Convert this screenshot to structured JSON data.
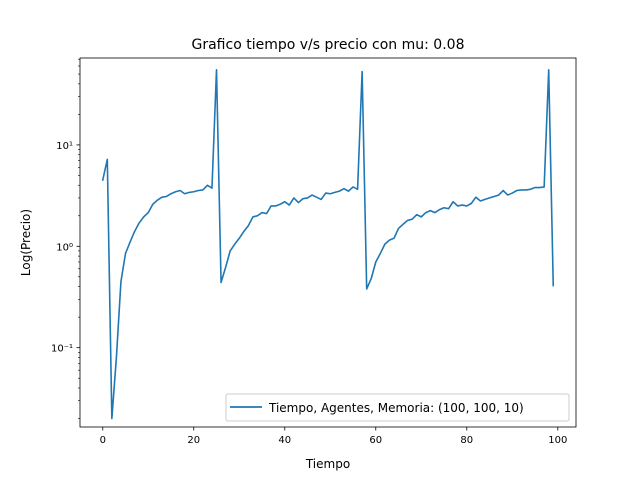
{
  "chart_data": {
    "type": "line",
    "title": "Grafico tiempo v/s precio con mu: 0.08",
    "xlabel": "Tiempo",
    "ylabel": "Log(Precio)",
    "yscale": "log",
    "xlim": [
      -5,
      104
    ],
    "ylim": [
      0.0165,
      72
    ],
    "xticks": [
      0,
      20,
      40,
      60,
      80,
      100
    ],
    "xtick_labels": [
      "0",
      "20",
      "40",
      "60",
      "80",
      "100"
    ],
    "yticks": [
      0.1,
      1,
      10
    ],
    "ytick_labels": [
      "10⁻¹",
      "10⁰",
      "10¹"
    ],
    "grid": false,
    "legend_position": "lower right",
    "series": [
      {
        "name": "Tiempo, Agentes, Memoria: (100, 100, 10)",
        "color": "#1f77b4",
        "x": [
          0,
          1,
          2,
          3,
          4,
          5,
          6,
          7,
          8,
          9,
          10,
          11,
          12,
          13,
          14,
          15,
          16,
          17,
          18,
          19,
          20,
          21,
          22,
          23,
          24,
          25,
          26,
          27,
          28,
          29,
          30,
          31,
          32,
          33,
          34,
          35,
          36,
          37,
          38,
          39,
          40,
          41,
          42,
          43,
          44,
          45,
          46,
          47,
          48,
          49,
          50,
          51,
          52,
          53,
          54,
          55,
          56,
          57,
          58,
          59,
          60,
          61,
          62,
          63,
          64,
          65,
          66,
          67,
          68,
          69,
          70,
          71,
          72,
          73,
          74,
          75,
          76,
          77,
          78,
          79,
          80,
          81,
          82,
          83,
          84,
          85,
          86,
          87,
          88,
          89,
          90,
          91,
          92,
          93,
          94,
          95,
          96,
          97,
          98,
          99
        ],
        "y": [
          4.5,
          7.2,
          0.02,
          0.08,
          0.45,
          0.85,
          1.1,
          1.4,
          1.7,
          1.95,
          2.15,
          2.6,
          2.85,
          3.05,
          3.1,
          3.3,
          3.45,
          3.55,
          3.3,
          3.4,
          3.45,
          3.55,
          3.6,
          4.0,
          3.75,
          55,
          0.44,
          0.62,
          0.9,
          1.05,
          1.2,
          1.4,
          1.6,
          1.95,
          2.0,
          2.15,
          2.1,
          2.5,
          2.5,
          2.6,
          2.75,
          2.55,
          3.0,
          2.7,
          2.95,
          3.0,
          3.2,
          3.05,
          2.9,
          3.35,
          3.3,
          3.4,
          3.5,
          3.7,
          3.5,
          3.85,
          3.65,
          53,
          0.38,
          0.48,
          0.7,
          0.85,
          1.05,
          1.15,
          1.2,
          1.5,
          1.65,
          1.8,
          1.85,
          2.05,
          1.95,
          2.15,
          2.25,
          2.15,
          2.3,
          2.4,
          2.35,
          2.75,
          2.5,
          2.55,
          2.5,
          2.65,
          3.05,
          2.8,
          2.9,
          3.0,
          3.1,
          3.2,
          3.55,
          3.2,
          3.35,
          3.55,
          3.6,
          3.6,
          3.65,
          3.8,
          3.8,
          3.85,
          55,
          0.41
        ]
      }
    ]
  }
}
